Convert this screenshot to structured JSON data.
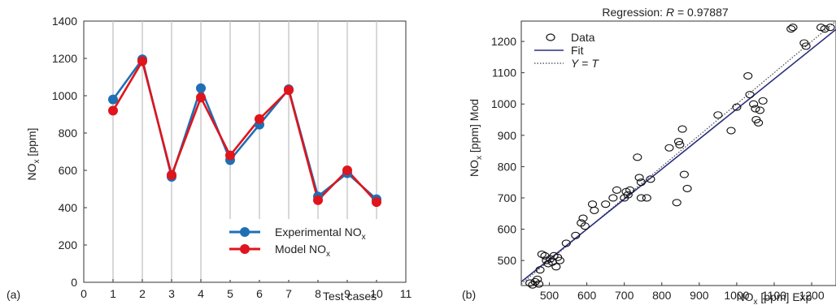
{
  "panels": {
    "a_label": "(a)",
    "b_label": "(b)"
  },
  "chart_data": [
    {
      "type": "line",
      "panel": "(a)",
      "title": "",
      "xlabel": "Test cases",
      "ylabel_main": "NO",
      "ylabel_sub": "x",
      "ylabel_tail": " [ppm]",
      "x": [
        1,
        2,
        3,
        4,
        5,
        6,
        7,
        8,
        9,
        10
      ],
      "xticks": [
        0,
        1,
        2,
        3,
        4,
        5,
        6,
        7,
        8,
        9,
        10,
        11
      ],
      "yticks": [
        0,
        200,
        400,
        600,
        800,
        1000,
        1200,
        1400
      ],
      "xlim": [
        0,
        11
      ],
      "ylim": [
        0,
        1400
      ],
      "grid": "vertical",
      "legend_position": "bottom-right",
      "series": [
        {
          "name_main": "Experimental NO",
          "name_sub": "x",
          "color": "#1f6fb5",
          "values": [
            980,
            1195,
            565,
            1040,
            655,
            845,
            1035,
            460,
            585,
            445
          ]
        },
        {
          "name_main": "Model NO",
          "name_sub": "x",
          "color": "#e0141c",
          "values": [
            920,
            1185,
            575,
            990,
            680,
            875,
            1030,
            440,
            600,
            430
          ]
        }
      ]
    },
    {
      "type": "scatter",
      "panel": "(b)",
      "title_main": "Regression: ",
      "title_italic": "R",
      "title_tail": " = 0.97887",
      "xlabel_main": "NO",
      "xlabel_sub": "x",
      "xlabel_tail": " [ppm] Exp",
      "ylabel_main": "NO",
      "ylabel_sub": "x",
      "ylabel_tail": " [ppm] Mod",
      "xticks": [
        500,
        600,
        700,
        800,
        900,
        1000,
        1100,
        1200
      ],
      "yticks": [
        500,
        600,
        700,
        800,
        900,
        1000,
        1100,
        1200
      ],
      "xlim": [
        425,
        1265
      ],
      "ylim": [
        420,
        1265
      ],
      "grid": "off",
      "legend_position": "top-left",
      "legend": [
        {
          "label": "Data",
          "marker": "circle"
        },
        {
          "label": "Fit",
          "line": "solid",
          "color": "#2b2f7e"
        },
        {
          "label_italic_1": "Y",
          "label_mid": " = ",
          "label_italic_2": "T",
          "line": "dotted",
          "color": "#444444"
        }
      ],
      "fit": {
        "slope": 0.96,
        "intercept": 24
      },
      "points": [
        [
          448,
          428
        ],
        [
          455,
          422
        ],
        [
          462,
          432
        ],
        [
          468,
          440
        ],
        [
          472,
          425
        ],
        [
          475,
          470
        ],
        [
          480,
          520
        ],
        [
          488,
          515
        ],
        [
          492,
          500
        ],
        [
          497,
          490
        ],
        [
          502,
          505
        ],
        [
          508,
          495
        ],
        [
          512,
          515
        ],
        [
          518,
          480
        ],
        [
          522,
          510
        ],
        [
          528,
          500
        ],
        [
          545,
          555
        ],
        [
          570,
          580
        ],
        [
          585,
          620
        ],
        [
          590,
          635
        ],
        [
          595,
          610
        ],
        [
          615,
          680
        ],
        [
          620,
          660
        ],
        [
          650,
          680
        ],
        [
          670,
          700
        ],
        [
          680,
          725
        ],
        [
          700,
          700
        ],
        [
          705,
          720
        ],
        [
          710,
          710
        ],
        [
          715,
          725
        ],
        [
          735,
          830
        ],
        [
          740,
          765
        ],
        [
          745,
          750
        ],
        [
          745,
          700
        ],
        [
          760,
          700
        ],
        [
          770,
          760
        ],
        [
          820,
          860
        ],
        [
          840,
          685
        ],
        [
          845,
          880
        ],
        [
          848,
          870
        ],
        [
          855,
          920
        ],
        [
          860,
          775
        ],
        [
          868,
          730
        ],
        [
          950,
          965
        ],
        [
          985,
          915
        ],
        [
          1000,
          990
        ],
        [
          1030,
          1090
        ],
        [
          1035,
          1030
        ],
        [
          1045,
          1000
        ],
        [
          1050,
          985
        ],
        [
          1052,
          950
        ],
        [
          1058,
          940
        ],
        [
          1062,
          980
        ],
        [
          1070,
          1010
        ],
        [
          1145,
          1240
        ],
        [
          1150,
          1245
        ],
        [
          1180,
          1195
        ],
        [
          1185,
          1185
        ],
        [
          1225,
          1245
        ],
        [
          1235,
          1240
        ],
        [
          1250,
          1245
        ]
      ]
    }
  ]
}
